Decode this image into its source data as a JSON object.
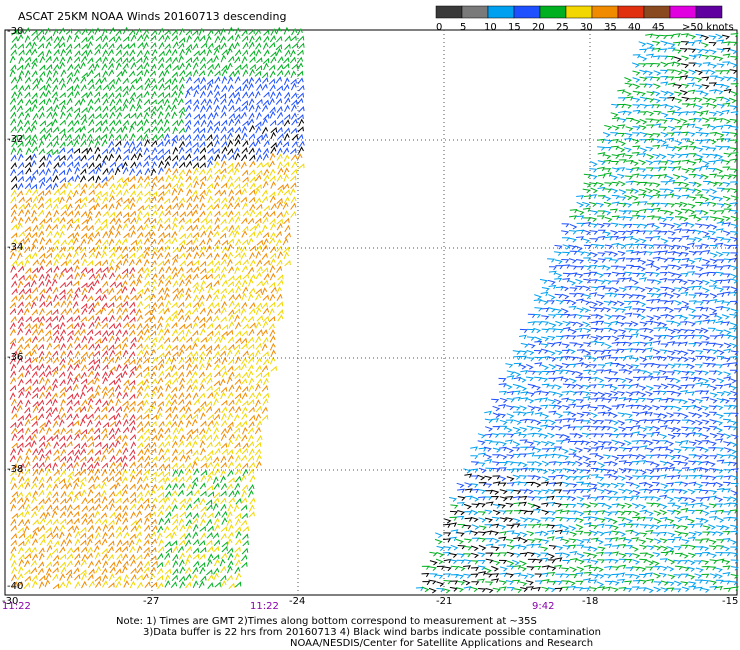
{
  "title": "ASCAT 25KM NOAA Winds 20160713 descending",
  "legend": {
    "tick_labels": [
      "0",
      "5",
      "10",
      "15",
      "20",
      "25",
      "30",
      "35",
      "40",
      "45",
      ">50 knots"
    ],
    "colors": [
      "#3a3a3a",
      "#7a7a7a",
      "#00a0f0",
      "#1e50ff",
      "#00b020",
      "#f2d700",
      "#f08b00",
      "#e03010",
      "#8a4a20",
      "#e000e0",
      "#6000a0"
    ]
  },
  "lat_labels": [
    "-30",
    "-32",
    "-34",
    "-36",
    "-38",
    "-40"
  ],
  "lon_labels": [
    "-30",
    "-27",
    "-24",
    "-21",
    "-18",
    "-15"
  ],
  "times": {
    "left": "11:22",
    "middle": "11:22",
    "right": "9:42"
  },
  "notes": {
    "line1": "Note: 1) Times are GMT 2)Times along bottom correspond to measurement at ~35S",
    "line2": "3)Data buffer is 22 hrs from 20160713 4) Black wind barbs indicate possible contamination",
    "line3": "NOAA/NESDIS/Center for Satellite Applications and Research"
  },
  "colors": {
    "time_color": "#8800aa",
    "grid_color": "#555555"
  }
}
